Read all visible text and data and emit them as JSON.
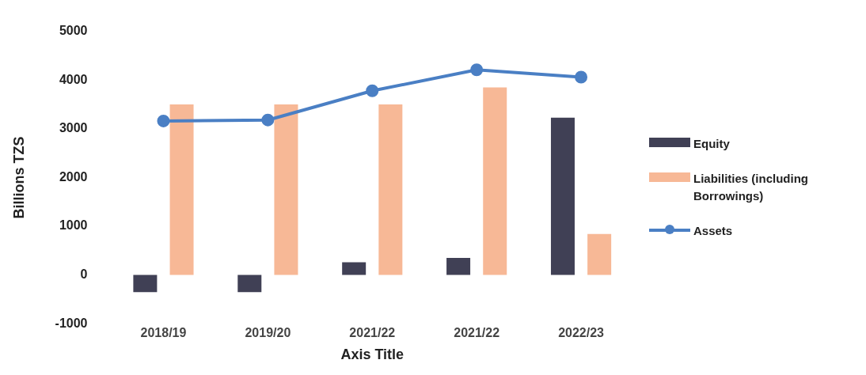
{
  "chart_data": {
    "type": "bar",
    "xlabel": "Axis Title",
    "ylabel": "Billions TZS",
    "categories": [
      "2018/19",
      "2019/20",
      "2021/22",
      "2021/22",
      "2022/23"
    ],
    "series": [
      {
        "name": "Equity",
        "color": "#404055",
        "values": [
          -350,
          -350,
          260,
          350,
          3230
        ]
      },
      {
        "name": "Liabilities (including Borrowings)",
        "color": "#f7b896",
        "values": [
          3500,
          3500,
          3500,
          3850,
          840
        ]
      },
      {
        "name": "Assets",
        "type": "line",
        "color": "#4a7fc4",
        "values": [
          3160,
          3180,
          3780,
          4210,
          4060
        ]
      }
    ],
    "ylim": [
      -1000,
      5000
    ],
    "yticks": [
      -1000,
      0,
      1000,
      2000,
      3000,
      4000,
      5000
    ],
    "grid": false,
    "legend": "right",
    "marker": "circle",
    "line_style": "solid"
  }
}
